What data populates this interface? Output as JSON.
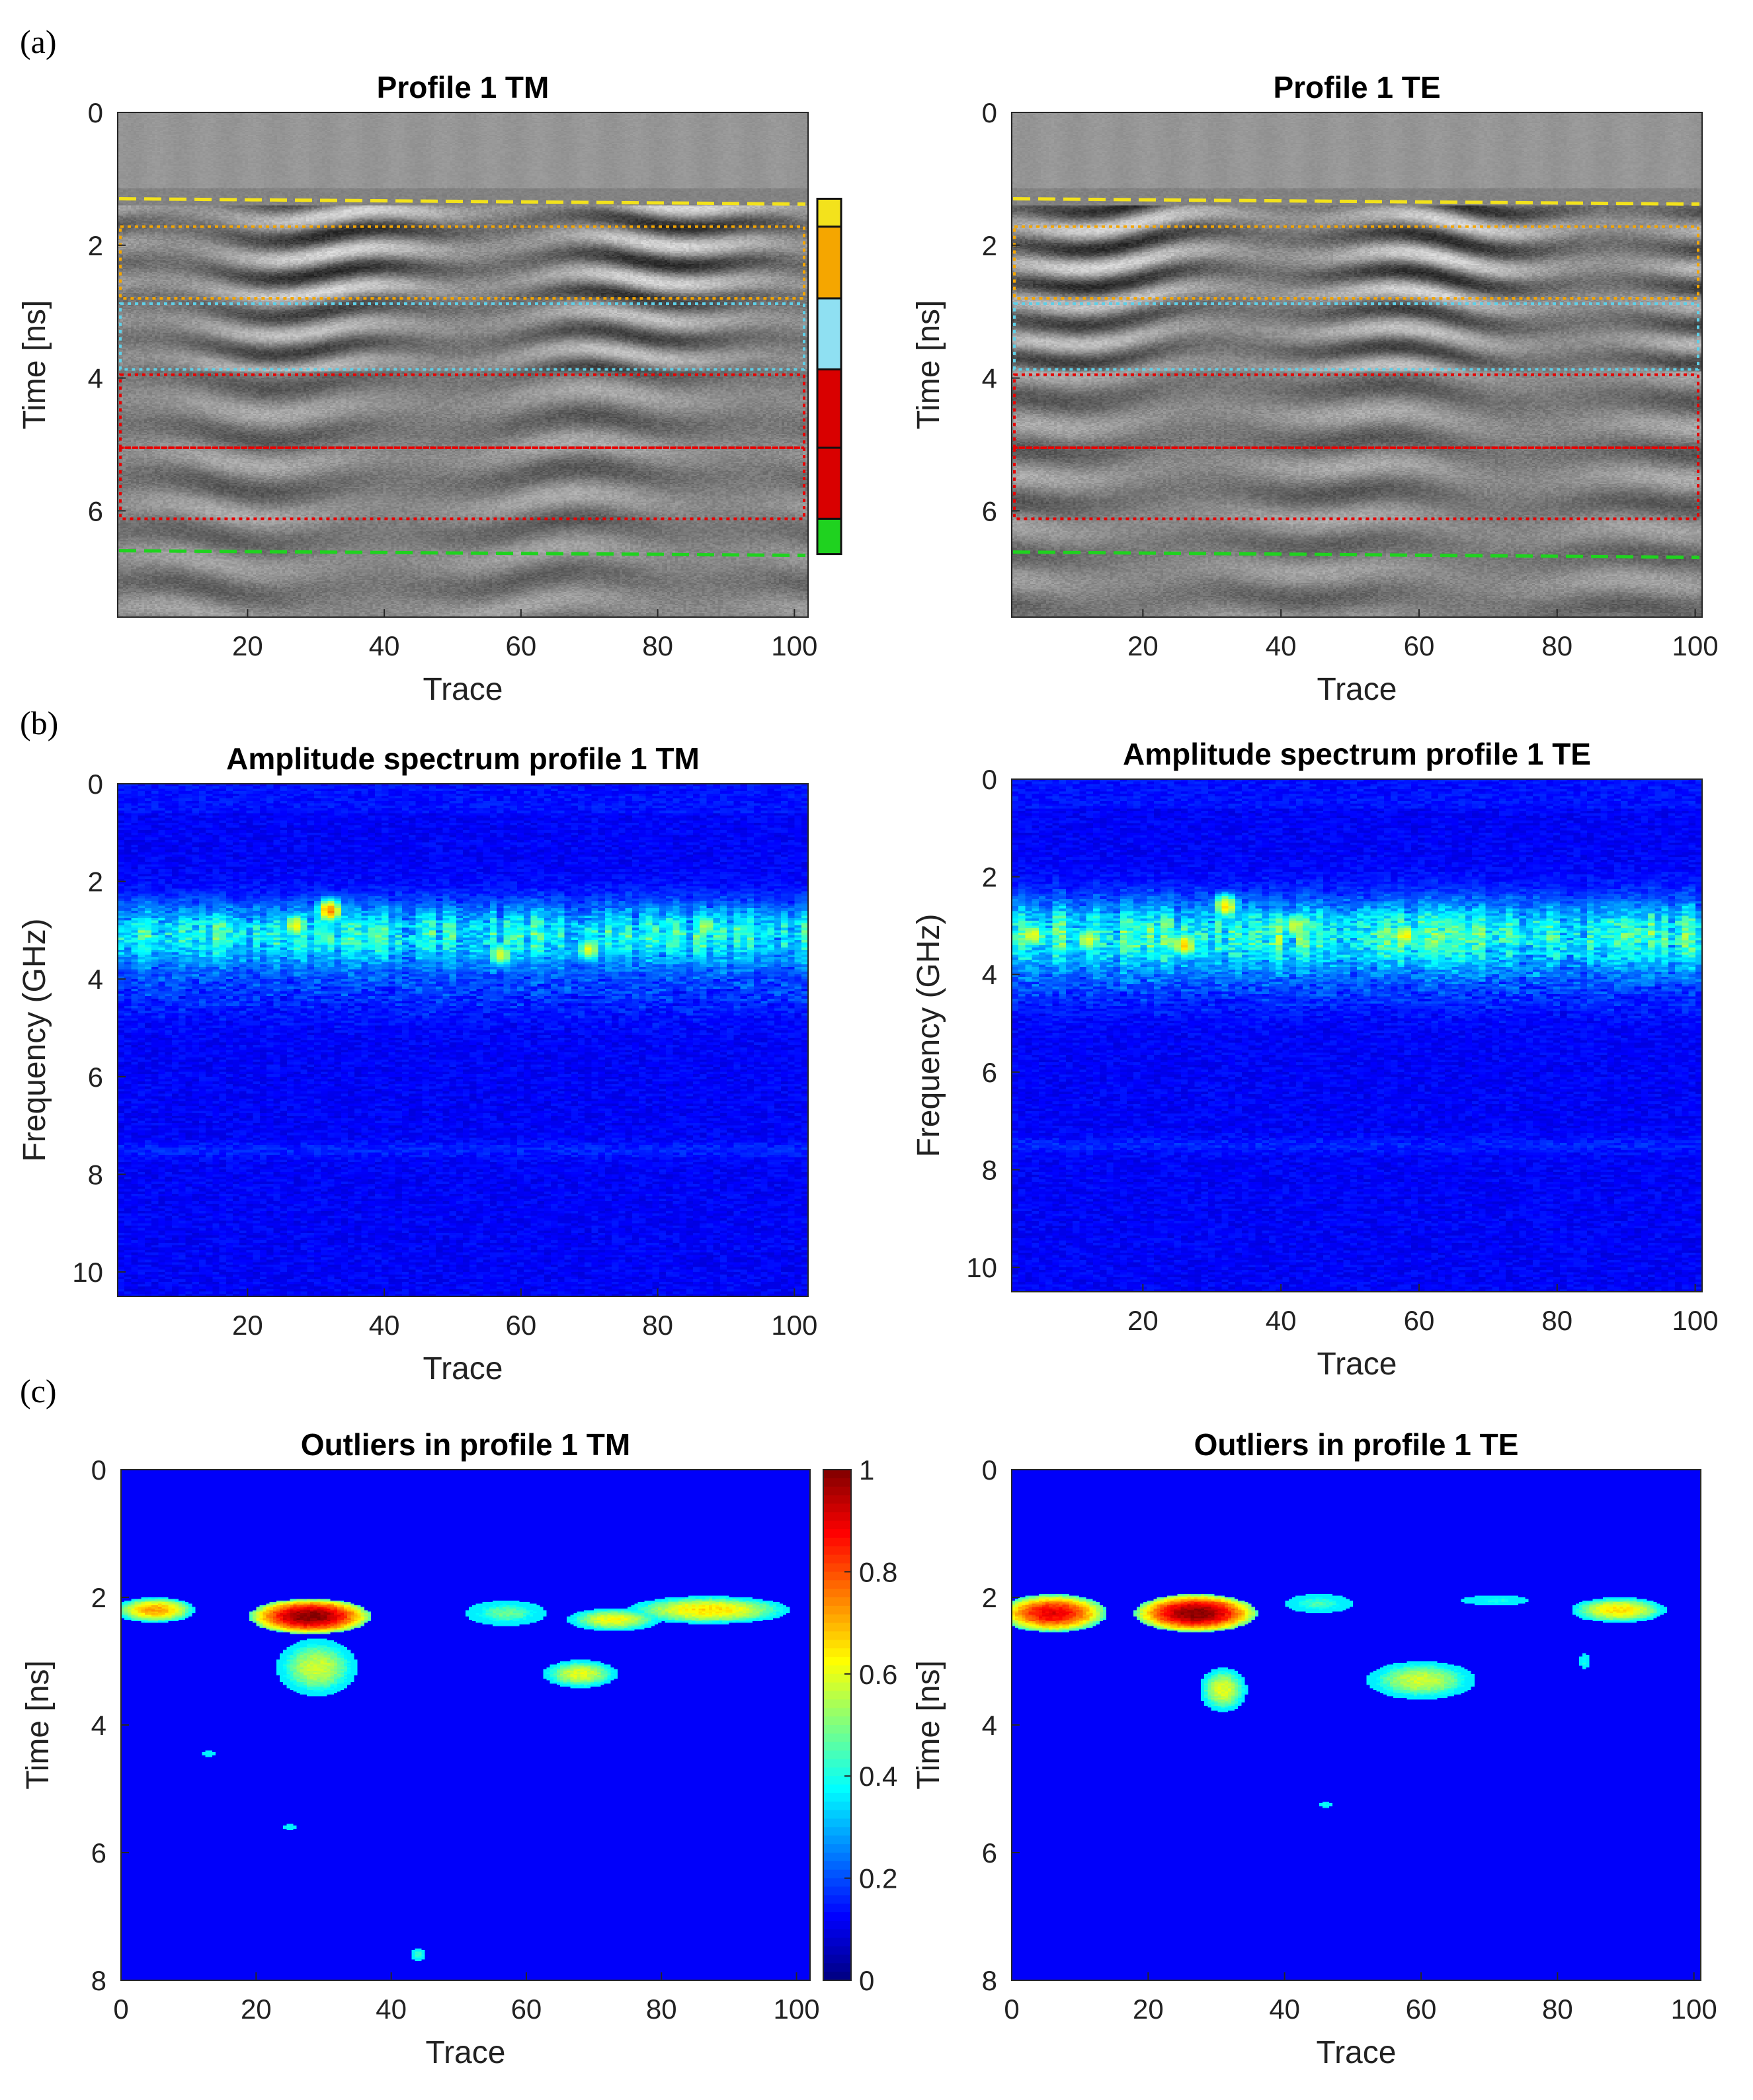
{
  "panel_labels": [
    "(a)",
    "(b)",
    "(c)"
  ],
  "chart_data": [
    {
      "id": "a_tm",
      "type": "heatmap",
      "colormap": "gray",
      "title": "Profile 1 TM",
      "xlabel": "Trace",
      "ylabel": "Time [ns]",
      "xlim": [
        1,
        102
      ],
      "ylim": [
        0,
        7.6
      ],
      "xticks": [
        20,
        40,
        60,
        80,
        100
      ],
      "yticks": [
        0,
        2,
        4,
        6
      ],
      "overlays": {
        "dashed_lines": [
          {
            "color": "#f3e21c",
            "y_start": 1.3,
            "y_end": 1.38
          },
          {
            "color": "#1fd21f",
            "y_start": 6.6,
            "y_end": 6.67
          }
        ],
        "dotted_boxes": [
          {
            "color": "#f5a600",
            "t_range": [
              1.72,
              2.8
            ]
          },
          {
            "color": "#5fd0e8",
            "t_range": [
              2.88,
              3.87
            ]
          },
          {
            "color": "#e60000",
            "t_range": [
              3.95,
              5.05
            ]
          },
          {
            "color": "#e60000",
            "t_range": [
              5.05,
              6.12
            ]
          }
        ]
      },
      "layer_legend": [
        {
          "color": "#f3e21c",
          "t_range": [
            1.3,
            1.72
          ]
        },
        {
          "color": "#f5a600",
          "t_range": [
            1.72,
            2.8
          ]
        },
        {
          "color": "#8fe0f2",
          "t_range": [
            2.8,
            3.87
          ]
        },
        {
          "color": "#d90000",
          "t_range": [
            3.87,
            5.05
          ]
        },
        {
          "color": "#d90000",
          "t_range": [
            5.05,
            6.12
          ]
        },
        {
          "color": "#1fd21f",
          "t_range": [
            6.12,
            6.65
          ]
        }
      ]
    },
    {
      "id": "a_te",
      "type": "heatmap",
      "colormap": "gray",
      "title": "Profile 1 TE",
      "xlabel": "Trace",
      "ylabel": "Time [ns]",
      "xlim": [
        1,
        101
      ],
      "ylim": [
        0,
        7.6
      ],
      "xticks": [
        20,
        40,
        60,
        80,
        100
      ],
      "yticks": [
        0,
        2,
        4,
        6
      ],
      "overlays": {
        "dashed_lines": [
          {
            "color": "#f3e21c",
            "y_start": 1.3,
            "y_end": 1.38
          },
          {
            "color": "#1fd21f",
            "y_start": 6.62,
            "y_end": 6.7
          }
        ],
        "dotted_boxes": [
          {
            "color": "#f5a600",
            "t_range": [
              1.72,
              2.8
            ]
          },
          {
            "color": "#5fd0e8",
            "t_range": [
              2.88,
              3.87
            ]
          },
          {
            "color": "#e60000",
            "t_range": [
              3.95,
              5.05
            ]
          },
          {
            "color": "#e60000",
            "t_range": [
              5.05,
              6.12
            ]
          }
        ]
      }
    },
    {
      "id": "b_tm",
      "type": "heatmap",
      "colormap": "jet",
      "title": "Amplitude spectrum profile 1 TM",
      "xlabel": "Trace",
      "ylabel": "Frequency (GHz)",
      "xlim": [
        1,
        102
      ],
      "ylim": [
        0,
        10.5
      ],
      "xticks": [
        20,
        40,
        60,
        80,
        100
      ],
      "yticks": [
        0,
        2,
        4,
        6,
        8,
        10
      ],
      "background_level": 0.12,
      "band": {
        "center_ghz": 3.1,
        "width_ghz": 0.9,
        "level": 0.32
      },
      "hotspots": [
        {
          "trace": 32,
          "freq": 2.6,
          "value": 0.75
        },
        {
          "trace": 27,
          "freq": 2.9,
          "value": 0.62
        },
        {
          "trace": 57,
          "freq": 3.5,
          "value": 0.6
        },
        {
          "trace": 70,
          "freq": 3.4,
          "value": 0.6
        },
        {
          "trace": 87,
          "freq": 2.9,
          "value": 0.55
        }
      ]
    },
    {
      "id": "b_te",
      "type": "heatmap",
      "colormap": "jet",
      "title": "Amplitude spectrum profile 1 TE",
      "xlabel": "Trace",
      "ylabel": "Frequency (GHz)",
      "xlim": [
        1,
        101
      ],
      "ylim": [
        0,
        10.5
      ],
      "xticks": [
        20,
        40,
        60,
        80,
        100
      ],
      "yticks": [
        0,
        2,
        4,
        6,
        8,
        10
      ],
      "background_level": 0.12,
      "band": {
        "center_ghz": 3.2,
        "width_ghz": 1.0,
        "level": 0.36
      },
      "hotspots": [
        {
          "trace": 4,
          "freq": 3.2,
          "value": 0.62
        },
        {
          "trace": 12,
          "freq": 3.3,
          "value": 0.6
        },
        {
          "trace": 26,
          "freq": 3.4,
          "value": 0.68
        },
        {
          "trace": 32,
          "freq": 2.6,
          "value": 0.66
        },
        {
          "trace": 42,
          "freq": 3.0,
          "value": 0.6
        },
        {
          "trace": 58,
          "freq": 3.2,
          "value": 0.64
        }
      ]
    },
    {
      "id": "c_tm",
      "type": "heatmap",
      "colormap": "jet",
      "title": "Outliers in profile 1 TM",
      "xlabel": "Trace",
      "ylabel": "Time [ns]",
      "xlim": [
        0,
        102
      ],
      "ylim": [
        0,
        8
      ],
      "xticks": [
        0,
        20,
        40,
        60,
        80,
        100
      ],
      "yticks": [
        0,
        2,
        4,
        6,
        8
      ],
      "colorbar": {
        "min": 0,
        "max": 1,
        "ticks": [
          0,
          0.2,
          0.4,
          0.6,
          0.8,
          1
        ]
      },
      "blobs": [
        {
          "trace": 5,
          "time": 2.2,
          "rx": 6,
          "rt": 0.2,
          "peak": 0.72
        },
        {
          "trace": 28,
          "time": 2.3,
          "rx": 9,
          "rt": 0.28,
          "peak": 1.0
        },
        {
          "trace": 29,
          "time": 3.1,
          "rx": 6,
          "rt": 0.45,
          "peak": 0.58
        },
        {
          "trace": 57,
          "time": 2.25,
          "rx": 6,
          "rt": 0.2,
          "peak": 0.48
        },
        {
          "trace": 68,
          "time": 3.2,
          "rx": 5.5,
          "rt": 0.22,
          "peak": 0.6
        },
        {
          "trace": 73,
          "time": 2.35,
          "rx": 7,
          "rt": 0.18,
          "peak": 0.62
        },
        {
          "trace": 87,
          "time": 2.2,
          "rx": 12,
          "rt": 0.22,
          "peak": 0.66
        },
        {
          "trace": 44,
          "time": 7.6,
          "rx": 1.2,
          "rt": 0.1,
          "peak": 0.45
        },
        {
          "trace": 13,
          "time": 4.45,
          "rx": 0.8,
          "rt": 0.05,
          "peak": 0.4
        },
        {
          "trace": 25,
          "time": 5.6,
          "rx": 0.8,
          "rt": 0.05,
          "peak": 0.4
        }
      ]
    },
    {
      "id": "c_te",
      "type": "heatmap",
      "colormap": "jet",
      "title": "Outliers in profile 1 TE",
      "xlabel": "Trace",
      "ylabel": "Time [ns]",
      "xlim": [
        0,
        101
      ],
      "ylim": [
        0,
        8
      ],
      "xticks": [
        0,
        20,
        40,
        60,
        80,
        100
      ],
      "yticks": [
        0,
        2,
        4,
        6,
        8
      ],
      "blobs": [
        {
          "trace": 6,
          "time": 2.25,
          "rx": 8,
          "rt": 0.3,
          "peak": 0.9
        },
        {
          "trace": 27,
          "time": 2.25,
          "rx": 9,
          "rt": 0.3,
          "peak": 1.0
        },
        {
          "trace": 45,
          "time": 2.1,
          "rx": 5,
          "rt": 0.15,
          "peak": 0.45
        },
        {
          "trace": 60,
          "time": 3.3,
          "rx": 8,
          "rt": 0.3,
          "peak": 0.58
        },
        {
          "trace": 31,
          "time": 3.45,
          "rx": 3.5,
          "rt": 0.35,
          "peak": 0.6
        },
        {
          "trace": 89,
          "time": 2.2,
          "rx": 7,
          "rt": 0.2,
          "peak": 0.66
        },
        {
          "trace": 71,
          "time": 2.05,
          "rx": 5,
          "rt": 0.08,
          "peak": 0.4
        },
        {
          "trace": 84,
          "time": 3.0,
          "rx": 0.7,
          "rt": 0.12,
          "peak": 0.4
        },
        {
          "trace": 46,
          "time": 5.25,
          "rx": 1,
          "rt": 0.05,
          "peak": 0.4
        }
      ]
    }
  ]
}
